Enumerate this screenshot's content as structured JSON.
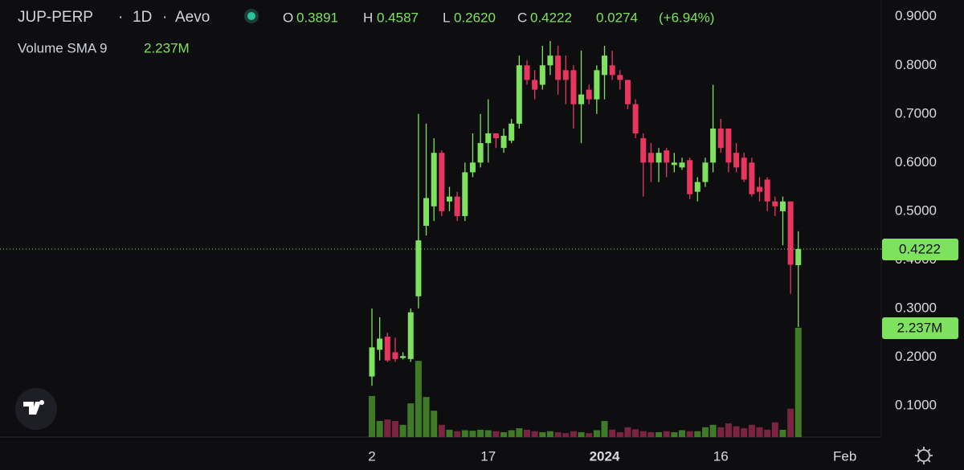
{
  "header": {
    "symbol": "JUP-PERP",
    "interval": "1D",
    "exchange": "Aevo",
    "open_key": "O",
    "open": "0.3891",
    "high_key": "H",
    "high": "0.4587",
    "low_key": "L",
    "low": "0.2620",
    "close_key": "C",
    "close": "0.4222",
    "change": "0.0274",
    "change_pct": "(+6.94%)",
    "indicator": "Volume SMA 9",
    "indicator_value": "2.237M"
  },
  "chart_data": {
    "type": "candlestick",
    "categories": [
      "2",
      null,
      null,
      null,
      null,
      null,
      null,
      null,
      null,
      null,
      null,
      null,
      null,
      null,
      null,
      "17",
      null,
      null,
      null,
      null,
      null,
      null,
      null,
      null,
      null,
      null,
      null,
      null,
      null,
      null,
      "2024",
      null,
      null,
      null,
      null,
      null,
      null,
      null,
      null,
      null,
      null,
      null,
      null,
      null,
      null,
      "16",
      null,
      null,
      null,
      null,
      null,
      null,
      null,
      null,
      null,
      null,
      null,
      null,
      null,
      null,
      null,
      "Feb",
      null,
      null,
      null,
      null
    ],
    "open": [
      0.16,
      0.215,
      0.242,
      0.21,
      0.198,
      0.196,
      0.325,
      0.47,
      0.51,
      0.62,
      0.52,
      0.53,
      0.49,
      0.58,
      0.6,
      0.64,
      0.66,
      0.63,
      0.645,
      0.68,
      0.8,
      0.77,
      0.76,
      0.8,
      0.82,
      0.79,
      0.79,
      0.72,
      0.75,
      0.73,
      0.78,
      0.8,
      0.78,
      0.77,
      0.72,
      0.65,
      0.62,
      0.6,
      0.625,
      0.595,
      0.59,
      0.605,
      0.54,
      0.56,
      0.6,
      0.67,
      0.67,
      0.62,
      0.61,
      0.6,
      0.55,
      0.565,
      0.52,
      0.5,
      0.52,
      0.3891,
      null,
      null,
      null,
      null,
      null,
      null,
      null,
      null,
      null,
      null
    ],
    "high": [
      0.3,
      0.282,
      0.25,
      0.24,
      0.21,
      0.3,
      0.7,
      0.68,
      0.65,
      0.625,
      0.55,
      0.54,
      0.6,
      0.66,
      0.7,
      0.73,
      0.66,
      0.67,
      0.69,
      0.82,
      0.81,
      0.79,
      0.84,
      0.85,
      0.84,
      0.82,
      0.8,
      0.83,
      0.76,
      0.8,
      0.84,
      0.83,
      0.79,
      0.77,
      0.73,
      0.66,
      0.64,
      0.63,
      0.63,
      0.62,
      0.61,
      0.61,
      0.57,
      0.61,
      0.76,
      0.69,
      0.67,
      0.64,
      0.62,
      0.61,
      0.57,
      0.57,
      0.53,
      0.53,
      0.52,
      0.4587,
      null,
      null,
      null,
      null,
      null,
      null,
      null,
      null,
      null,
      null
    ],
    "low": [
      0.141,
      0.193,
      0.19,
      0.19,
      0.195,
      0.19,
      0.3,
      0.45,
      0.48,
      0.49,
      0.5,
      0.48,
      0.48,
      0.57,
      0.59,
      0.6,
      0.63,
      0.62,
      0.64,
      0.67,
      0.76,
      0.73,
      0.75,
      0.78,
      0.74,
      0.72,
      0.67,
      0.64,
      0.72,
      0.7,
      0.73,
      0.77,
      0.75,
      0.71,
      0.65,
      0.53,
      0.56,
      0.56,
      0.57,
      0.58,
      0.585,
      0.525,
      0.52,
      0.55,
      0.58,
      0.62,
      0.58,
      0.58,
      0.56,
      0.53,
      0.52,
      0.5,
      0.49,
      0.43,
      0.33,
      0.262,
      null,
      null,
      null,
      null,
      null,
      null,
      null,
      null,
      null,
      null
    ],
    "close": [
      0.22,
      0.238,
      0.193,
      0.196,
      0.202,
      0.292,
      0.44,
      0.527,
      0.62,
      0.5,
      0.53,
      0.49,
      0.58,
      0.6,
      0.64,
      0.66,
      0.65,
      0.655,
      0.68,
      0.8,
      0.77,
      0.75,
      0.8,
      0.82,
      0.77,
      0.77,
      0.72,
      0.74,
      0.73,
      0.79,
      0.82,
      0.78,
      0.77,
      0.72,
      0.66,
      0.6,
      0.6,
      0.62,
      0.6,
      0.6,
      0.6,
      0.535,
      0.56,
      0.6,
      0.67,
      0.63,
      0.6,
      0.59,
      0.565,
      0.535,
      0.54,
      0.52,
      0.51,
      0.52,
      0.39,
      0.4222,
      null,
      null,
      null,
      null,
      null,
      null,
      null,
      null,
      null,
      null
    ],
    "volume": [
      0.84,
      0.33,
      0.36,
      0.33,
      0.25,
      0.69,
      1.56,
      0.82,
      0.54,
      0.25,
      0.15,
      0.12,
      0.14,
      0.13,
      0.15,
      0.14,
      0.12,
      0.1,
      0.14,
      0.18,
      0.15,
      0.12,
      0.1,
      0.12,
      0.1,
      0.08,
      0.12,
      0.1,
      0.08,
      0.14,
      0.33,
      0.15,
      0.1,
      0.2,
      0.16,
      0.12,
      0.1,
      0.1,
      0.12,
      0.1,
      0.14,
      0.12,
      0.12,
      0.2,
      0.25,
      0.2,
      0.28,
      0.22,
      0.18,
      0.25,
      0.2,
      0.15,
      0.3,
      0.15,
      0.58,
      2.237,
      null,
      null,
      null,
      null,
      null,
      null,
      null,
      null,
      null,
      null
    ],
    "up_color": "#7fe25f",
    "down_color": "#e8365f",
    "volume_up_color": "#3f7a26",
    "volume_down_color": "#7a2442",
    "ylim": [
      0.0355,
      0.9343
    ],
    "yticks": [
      {
        "value": 0.1,
        "label": "0.1000"
      },
      {
        "value": 0.2,
        "label": "0.2000"
      },
      {
        "value": 0.3,
        "label": "0.3000"
      },
      {
        "value": 0.4,
        "label": "0.4000"
      },
      {
        "value": 0.5,
        "label": "0.5000"
      },
      {
        "value": 0.6,
        "label": "0.6000"
      },
      {
        "value": 0.7,
        "label": "0.7000"
      },
      {
        "value": 0.8,
        "label": "0.8000"
      },
      {
        "value": 0.9,
        "label": "0.9000"
      }
    ],
    "grid": false,
    "last_price_label": "0.4222",
    "last_volume_label": "2.237M"
  }
}
